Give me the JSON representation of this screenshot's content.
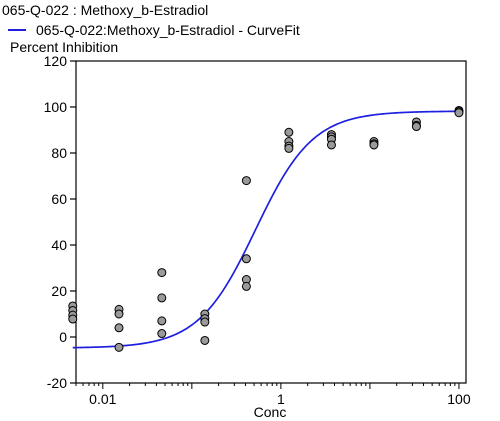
{
  "chart_data": {
    "type": "scatter",
    "title": "065-Q-022  : Methoxy_b-Estradiol",
    "ylabel": "Percent Inhibition",
    "xlabel": "Conc",
    "xscale": "log",
    "xlim": [
      0.005,
      120
    ],
    "ylim": [
      -20,
      120
    ],
    "xticks": [
      {
        "v": 0.01,
        "label": "0.01"
      },
      {
        "v": 1,
        "label": "1"
      },
      {
        "v": 100,
        "label": "100"
      }
    ],
    "yticks": [
      -20,
      0,
      20,
      40,
      60,
      80,
      100,
      120
    ],
    "grid": false,
    "legend_position": "top-left",
    "colors": {
      "fit": "#1f1fe0",
      "marker_fill": "#9a9a9a",
      "marker_edge": "#000000"
    },
    "series": [
      {
        "name": "065-Q-022  : Methoxy_b-Estradiol",
        "kind": "points",
        "points": [
          [
            0.0046,
            13.5
          ],
          [
            0.0046,
            11.5
          ],
          [
            0.0046,
            9.5
          ],
          [
            0.0046,
            7.8
          ],
          [
            0.0152,
            12
          ],
          [
            0.0152,
            10
          ],
          [
            0.0152,
            4
          ],
          [
            0.0152,
            -4.5
          ],
          [
            0.046,
            28
          ],
          [
            0.046,
            17
          ],
          [
            0.046,
            7
          ],
          [
            0.046,
            1.5
          ],
          [
            0.14,
            10
          ],
          [
            0.14,
            8
          ],
          [
            0.14,
            6.5
          ],
          [
            0.14,
            -1.5
          ],
          [
            0.41,
            68
          ],
          [
            0.41,
            34
          ],
          [
            0.41,
            25
          ],
          [
            0.41,
            22
          ],
          [
            1.23,
            89
          ],
          [
            1.23,
            85
          ],
          [
            1.23,
            83
          ],
          [
            1.23,
            82
          ],
          [
            3.7,
            88
          ],
          [
            3.7,
            87
          ],
          [
            3.7,
            86
          ],
          [
            3.7,
            83.5
          ],
          [
            11.1,
            85
          ],
          [
            11.1,
            84
          ],
          [
            11.1,
            83.5
          ],
          [
            33.3,
            93.5
          ],
          [
            33.3,
            92
          ],
          [
            33.3,
            91.5
          ],
          [
            100,
            98.5
          ],
          [
            100,
            98
          ],
          [
            100,
            97.5
          ]
        ]
      },
      {
        "name": "065-Q-022:Methoxy_b-Estradiol - CurveFit",
        "kind": "curve",
        "bottom": -4.8,
        "top": 98.2,
        "ec50": 0.52,
        "hill": 1.35
      }
    ]
  }
}
